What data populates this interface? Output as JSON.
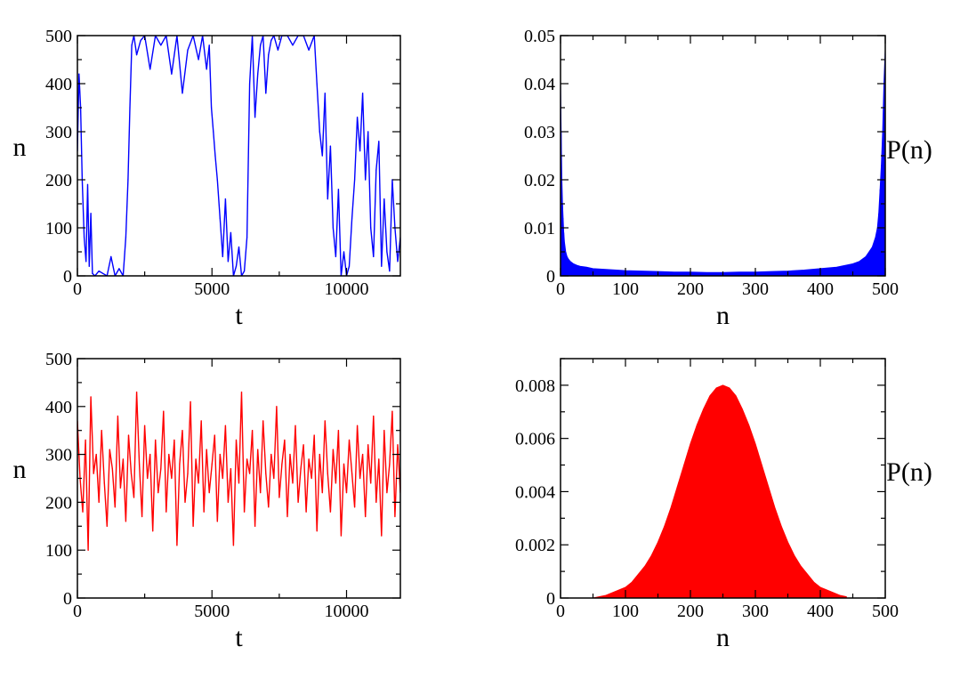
{
  "chart_data": [
    {
      "type": "line",
      "title": "",
      "xlabel": "t",
      "ylabel": "n",
      "xlim": [
        0,
        12000
      ],
      "ylim": [
        0,
        500
      ],
      "xticks": [
        0,
        5000,
        10000
      ],
      "yticks": [
        0,
        100,
        200,
        300,
        400,
        500
      ],
      "xtick_labels": [
        "0",
        "5000",
        "10000"
      ],
      "ytick_labels": [
        "0",
        "100",
        "200",
        "300",
        "400",
        "500"
      ],
      "grid": false,
      "color": "#0000ff",
      "series": [
        {
          "x": [
            0,
            60,
            120,
            180,
            250,
            320,
            380,
            440,
            500,
            560,
            650,
            800,
            950,
            1100,
            1250,
            1400,
            1550,
            1700,
            1800,
            1880,
            1950,
            2020,
            2100,
            2200,
            2350,
            2500,
            2700,
            2900,
            3100,
            3300,
            3500,
            3700,
            3900,
            4100,
            4300,
            4500,
            4650,
            4800,
            4900,
            4980,
            5050,
            5120,
            5200,
            5300,
            5400,
            5500,
            5600,
            5700,
            5800,
            5900,
            6000,
            6100,
            6200,
            6300,
            6400,
            6500,
            6600,
            6700,
            6800,
            6900,
            7000,
            7100,
            7200,
            7300,
            7450,
            7600,
            7800,
            8000,
            8200,
            8400,
            8600,
            8800,
            8900,
            9000,
            9100,
            9200,
            9300,
            9400,
            9500,
            9600,
            9700,
            9800,
            9900,
            10000,
            10100,
            10200,
            10300,
            10400,
            10500,
            10600,
            10700,
            10800,
            10900,
            11000,
            11100,
            11200,
            11300,
            11400,
            11500,
            11600,
            11700,
            11800,
            11900,
            12000
          ],
          "y": [
            260,
            420,
            350,
            200,
            80,
            30,
            190,
            20,
            130,
            5,
            0,
            10,
            5,
            0,
            40,
            0,
            15,
            0,
            80,
            200,
            350,
            480,
            500,
            460,
            490,
            500,
            430,
            500,
            480,
            500,
            420,
            500,
            380,
            470,
            500,
            450,
            500,
            430,
            480,
            350,
            300,
            250,
            200,
            120,
            40,
            160,
            30,
            90,
            0,
            20,
            60,
            0,
            10,
            80,
            400,
            500,
            330,
            420,
            480,
            500,
            380,
            460,
            490,
            500,
            470,
            500,
            500,
            480,
            500,
            500,
            470,
            500,
            400,
            300,
            250,
            380,
            160,
            270,
            100,
            40,
            180,
            0,
            50,
            0,
            20,
            120,
            200,
            330,
            260,
            380,
            200,
            300,
            100,
            40,
            220,
            280,
            20,
            160,
            50,
            10,
            200,
            100,
            30,
            80
          ]
        }
      ]
    },
    {
      "type": "bar",
      "title": "",
      "xlabel": "n",
      "ylabel": "P(n)",
      "xlim": [
        0,
        500
      ],
      "ylim": [
        0,
        0.05
      ],
      "xticks": [
        0,
        100,
        200,
        300,
        400,
        500
      ],
      "yticks": [
        0,
        0.01,
        0.02,
        0.03,
        0.04,
        0.05
      ],
      "xtick_labels": [
        "0",
        "100",
        "200",
        "300",
        "400",
        "500"
      ],
      "ytick_labels": [
        "0",
        "0.01",
        "0.02",
        "0.03",
        "0.04",
        "0.05"
      ],
      "grid": false,
      "color": "#0000ff",
      "series": [
        {
          "x": [
            0,
            1,
            2,
            3,
            4,
            5,
            6,
            8,
            10,
            12,
            15,
            20,
            25,
            30,
            40,
            50,
            75,
            100,
            125,
            150,
            175,
            200,
            225,
            250,
            275,
            300,
            325,
            350,
            375,
            400,
            425,
            450,
            460,
            470,
            475,
            480,
            485,
            488,
            490,
            492,
            494,
            496,
            498,
            500
          ],
          "y": [
            0.04,
            0.03,
            0.02,
            0.015,
            0.012,
            0.009,
            0.007,
            0.005,
            0.004,
            0.0035,
            0.003,
            0.0025,
            0.0022,
            0.002,
            0.0018,
            0.0015,
            0.0013,
            0.0011,
            0.001,
            0.0009,
            0.0008,
            0.0008,
            0.0007,
            0.0007,
            0.0008,
            0.0008,
            0.0009,
            0.001,
            0.0012,
            0.0015,
            0.0018,
            0.0025,
            0.003,
            0.004,
            0.005,
            0.006,
            0.008,
            0.01,
            0.013,
            0.018,
            0.023,
            0.03,
            0.04,
            0.047
          ]
        }
      ]
    },
    {
      "type": "line",
      "title": "",
      "xlabel": "t",
      "ylabel": "n",
      "xlim": [
        0,
        12000
      ],
      "ylim": [
        0,
        500
      ],
      "xticks": [
        0,
        5000,
        10000
      ],
      "yticks": [
        0,
        100,
        200,
        300,
        400,
        500
      ],
      "xtick_labels": [
        "0",
        "5000",
        "10000"
      ],
      "ytick_labels": [
        "0",
        "100",
        "200",
        "300",
        "400",
        "500"
      ],
      "grid": false,
      "color": "#ff0000",
      "series": [
        {
          "x": [
            0,
            100,
            200,
            300,
            400,
            500,
            600,
            700,
            800,
            900,
            1000,
            1100,
            1200,
            1300,
            1400,
            1500,
            1600,
            1700,
            1800,
            1900,
            2000,
            2100,
            2200,
            2300,
            2400,
            2500,
            2600,
            2700,
            2800,
            2900,
            3000,
            3100,
            3200,
            3300,
            3400,
            3500,
            3600,
            3700,
            3800,
            3900,
            4000,
            4100,
            4200,
            4300,
            4400,
            4500,
            4600,
            4700,
            4800,
            4900,
            5000,
            5100,
            5200,
            5300,
            5400,
            5500,
            5600,
            5700,
            5800,
            5900,
            6000,
            6100,
            6200,
            6300,
            6400,
            6500,
            6600,
            6700,
            6800,
            6900,
            7000,
            7100,
            7200,
            7300,
            7400,
            7500,
            7600,
            7700,
            7800,
            7900,
            8000,
            8100,
            8200,
            8300,
            8400,
            8500,
            8600,
            8700,
            8800,
            8900,
            9000,
            9100,
            9200,
            9300,
            9400,
            9500,
            9600,
            9700,
            9800,
            9900,
            10000,
            10100,
            10200,
            10300,
            10400,
            10500,
            10600,
            10700,
            10800,
            10900,
            11000,
            11100,
            11200,
            11300,
            11400,
            11500,
            11600,
            11700,
            11800,
            11900,
            12000
          ],
          "y": [
            370,
            250,
            180,
            330,
            100,
            420,
            260,
            300,
            200,
            350,
            240,
            150,
            310,
            270,
            190,
            380,
            230,
            290,
            160,
            340,
            260,
            210,
            430,
            280,
            170,
            360,
            250,
            300,
            140,
            330,
            220,
            270,
            390,
            180,
            300,
            250,
            330,
            110,
            280,
            350,
            200,
            260,
            410,
            150,
            290,
            240,
            370,
            180,
            310,
            220,
            280,
            340,
            160,
            300,
            250,
            360,
            200,
            270,
            110,
            330,
            240,
            430,
            180,
            290,
            260,
            350,
            150,
            310,
            220,
            370,
            260,
            190,
            300,
            250,
            400,
            210,
            280,
            330,
            170,
            300,
            240,
            360,
            200,
            270,
            320,
            180,
            290,
            250,
            340,
            140,
            300,
            220,
            370,
            260,
            180,
            310,
            240,
            350,
            130,
            280,
            220,
            330,
            260,
            190,
            360,
            250,
            300,
            170,
            320,
            240,
            380,
            200,
            290,
            130,
            350,
            220,
            280,
            390,
            170,
            320,
            220
          ]
        }
      ]
    },
    {
      "type": "bar",
      "title": "",
      "xlabel": "n",
      "ylabel": "P(n)",
      "xlim": [
        0,
        500
      ],
      "ylim": [
        0,
        0.009
      ],
      "xticks": [
        0,
        100,
        200,
        300,
        400,
        500
      ],
      "yticks": [
        0,
        0.002,
        0.004,
        0.006,
        0.008
      ],
      "xtick_labels": [
        "0",
        "100",
        "200",
        "300",
        "400",
        "500"
      ],
      "ytick_labels": [
        "0",
        "0.002",
        "0.004",
        "0.006",
        "0.008"
      ],
      "grid": false,
      "color": "#ff0000",
      "series": [
        {
          "x": [
            50,
            60,
            70,
            80,
            90,
            100,
            110,
            120,
            130,
            140,
            150,
            160,
            170,
            180,
            190,
            200,
            210,
            220,
            230,
            240,
            250,
            260,
            270,
            280,
            290,
            300,
            310,
            320,
            330,
            340,
            350,
            360,
            370,
            380,
            390,
            400,
            410,
            420,
            430,
            440
          ],
          "y": [
            0.0,
            5e-05,
            0.0001,
            0.0002,
            0.0003,
            0.0004,
            0.0006,
            0.0009,
            0.0012,
            0.0016,
            0.0021,
            0.0027,
            0.0034,
            0.0042,
            0.005,
            0.0058,
            0.0065,
            0.0071,
            0.0076,
            0.0079,
            0.008,
            0.0079,
            0.0076,
            0.0071,
            0.0065,
            0.0058,
            0.005,
            0.0042,
            0.0034,
            0.0027,
            0.0021,
            0.0016,
            0.0012,
            0.0009,
            0.0006,
            0.0004,
            0.0003,
            0.0002,
            0.0001,
            5e-05
          ]
        }
      ]
    }
  ]
}
